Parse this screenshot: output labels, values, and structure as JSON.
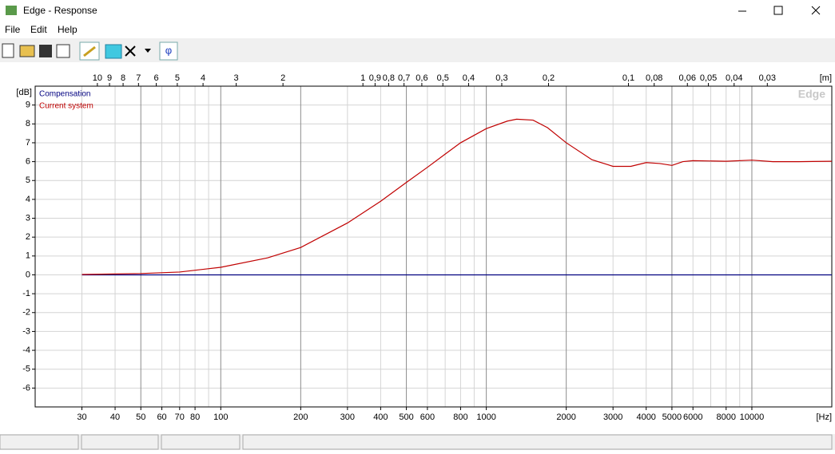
{
  "window": {
    "title": "Edge - Response"
  },
  "menu": [
    "File",
    "Edit",
    "Help"
  ],
  "toolbar": {
    "phase_button": "φ"
  },
  "chart_data": {
    "type": "line",
    "watermark": "Edge",
    "x_label": "[Hz]",
    "y_label": "[dB]",
    "x2_label": "[m]",
    "xscale": "log",
    "grid": true,
    "legend": "upper left",
    "xlim": [
      20,
      20000
    ],
    "ylim": [
      -7,
      10
    ],
    "xticks": [
      30,
      40,
      50,
      60,
      70,
      80,
      100,
      200,
      300,
      400,
      500,
      600,
      800,
      1000,
      2000,
      3000,
      4000,
      5000,
      6000,
      8000,
      10000
    ],
    "x_minor_ticks": [
      90,
      700,
      900,
      7000,
      9000
    ],
    "yticks": [
      -6,
      -5,
      -4,
      -3,
      -2,
      -1,
      0,
      1,
      2,
      3,
      4,
      5,
      6,
      7,
      8,
      9
    ],
    "x2lim": [
      17.15,
      0.01715
    ],
    "x2ticks": [
      10,
      9,
      8,
      7,
      6,
      5,
      4,
      3,
      2,
      1,
      {
        "value": 0.9,
        "label": "0,9"
      },
      {
        "value": 0.8,
        "label": "0,8"
      },
      {
        "value": 0.7,
        "label": "0,7"
      },
      {
        "value": 0.6,
        "label": "0,6"
      },
      {
        "value": 0.5,
        "label": "0,5"
      },
      {
        "value": 0.4,
        "label": "0,4"
      },
      {
        "value": 0.3,
        "label": "0,3"
      },
      {
        "value": 0.2,
        "label": "0,2"
      },
      {
        "value": 0.1,
        "label": "0,1"
      },
      {
        "value": 0.08,
        "label": "0,08"
      },
      {
        "value": 0.06,
        "label": "0,06"
      },
      {
        "value": 0.05,
        "label": "0,05"
      },
      {
        "value": 0.04,
        "label": "0,04"
      },
      {
        "value": 0.03,
        "label": "0,03"
      }
    ],
    "series": [
      {
        "name": "Compensation",
        "color": "#000080",
        "x": [
          30,
          20000
        ],
        "values": [
          0,
          0
        ]
      },
      {
        "name": "Current system",
        "color": "#c00000",
        "x": [
          30,
          50,
          70,
          100,
          150,
          200,
          300,
          400,
          500,
          600,
          700,
          800,
          1000,
          1200,
          1300,
          1500,
          1700,
          2000,
          2500,
          3000,
          3500,
          4000,
          4500,
          5000,
          5500,
          6000,
          8000,
          10000,
          12000,
          15000,
          20000
        ],
        "values": [
          0.02,
          0.07,
          0.15,
          0.4,
          0.9,
          1.45,
          2.75,
          3.9,
          4.9,
          5.7,
          6.4,
          7.0,
          7.75,
          8.15,
          8.25,
          8.2,
          7.8,
          7.0,
          6.1,
          5.75,
          5.75,
          5.95,
          5.9,
          5.8,
          6.0,
          6.05,
          6.02,
          6.08,
          6.0,
          6.0,
          6.02
        ]
      }
    ]
  }
}
